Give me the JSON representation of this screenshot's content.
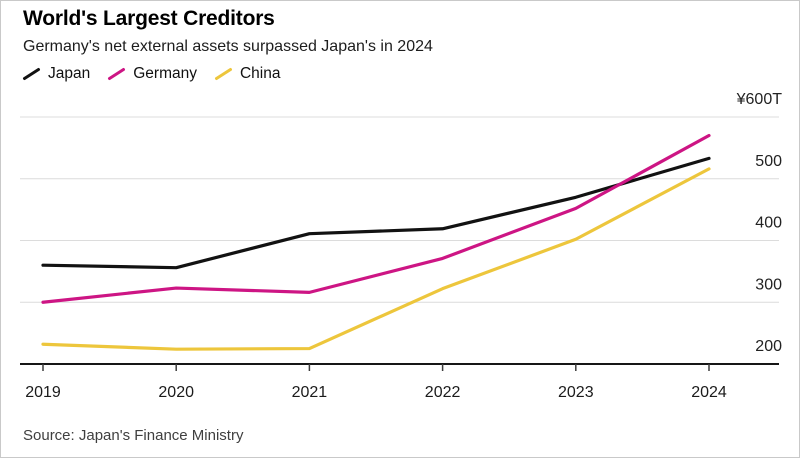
{
  "header": {
    "title": "World's Largest Creditors",
    "subtitle": "Germany's net external assets surpassed Japan's in 2024"
  },
  "legend": {
    "items": [
      {
        "label": "Japan",
        "color": "#121212"
      },
      {
        "label": "Germany",
        "color": "#cd1584"
      },
      {
        "label": "China",
        "color": "#edc63c"
      }
    ]
  },
  "chart_data": {
    "type": "line",
    "title": "World's Largest Creditors",
    "subtitle": "Germany's net external assets surpassed Japan's in 2024",
    "unit": "trillion yen (¥T)",
    "x": [
      "2019",
      "2020",
      "2021",
      "2022",
      "2023",
      "2024"
    ],
    "series": [
      {
        "name": "Japan",
        "color": "#121212",
        "values": [
          360,
          356,
          411,
          419,
          470,
          533
        ]
      },
      {
        "name": "Germany",
        "color": "#cd1584",
        "values": [
          300,
          323,
          316,
          371,
          452,
          570
        ]
      },
      {
        "name": "China",
        "color": "#edc63c",
        "values": [
          232,
          224,
          225,
          322,
          402,
          516
        ]
      }
    ],
    "ylim": [
      200,
      600
    ],
    "yticks": [
      200,
      300,
      400,
      500,
      600
    ],
    "ytick_labels": [
      "200",
      "300",
      "400",
      "500",
      "¥600T"
    ],
    "grid": true,
    "legend_position": "top-left",
    "y_axis_side": "right"
  },
  "footer": {
    "source": "Source: Japan's Finance Ministry"
  }
}
